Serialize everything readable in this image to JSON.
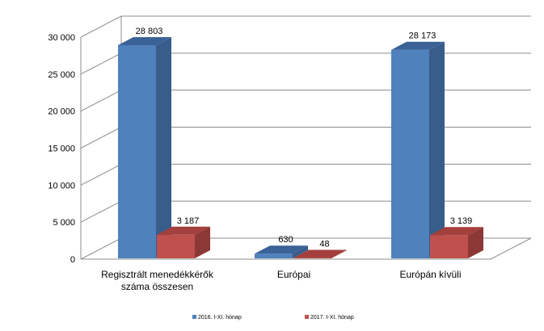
{
  "chart_data": {
    "type": "bar",
    "title": "",
    "xlabel": "",
    "ylabel": "",
    "ylim": [
      0,
      30000
    ],
    "y_ticks": [
      0,
      5000,
      10000,
      15000,
      20000,
      25000,
      30000
    ],
    "y_tick_labels": [
      "0",
      "5 000",
      "10 000",
      "15 000",
      "20 000",
      "25 000",
      "30 000"
    ],
    "categories": [
      [
        "Regisztrált menedékkérők",
        "száma összesen"
      ],
      [
        "Európai"
      ],
      [
        "Európán kívüli"
      ]
    ],
    "series": [
      {
        "name": "2016. I-XI. hónap",
        "values": [
          28803,
          630,
          28173
        ],
        "labels": [
          "28 803",
          "630",
          "28 173"
        ],
        "color": "#4F81BD",
        "side_color": "#385D8A",
        "top_color": "#3A6296"
      },
      {
        "name": "2017.  I-XI. hónap",
        "values": [
          3187,
          48,
          3139
        ],
        "labels": [
          "3 187",
          "48",
          "3 139"
        ],
        "color": "#C0504D",
        "side_color": "#8C3836",
        "top_color": "#A33F3C"
      }
    ],
    "grid": true,
    "chart_style": "3d-clustered-column",
    "legend_position": "bottom"
  }
}
